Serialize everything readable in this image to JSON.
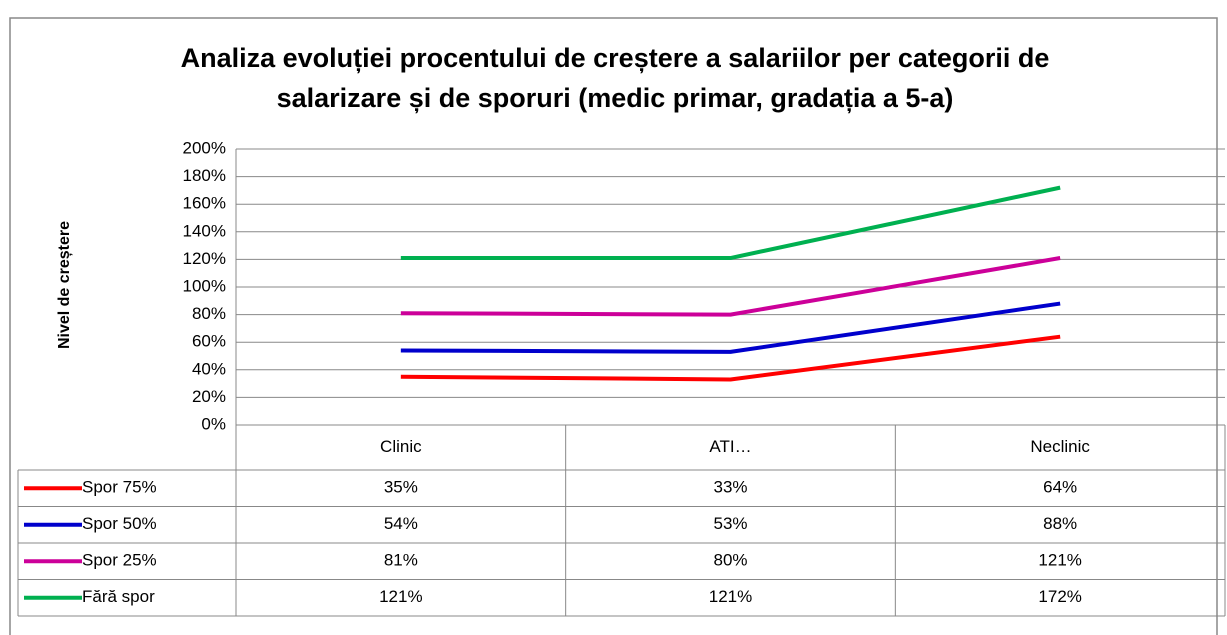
{
  "chart_data": {
    "type": "line",
    "title": "Analiza evoluției procentului de creștere a salariilor per categorii de salarizare  și de sporuri (medic primar, gradația a 5-a)",
    "y_label": "Nivel de creștere",
    "categories": [
      "Clinic",
      "ATI…",
      "Neclinic"
    ],
    "series": [
      {
        "name": "Spor 75%",
        "color": "#ff0000",
        "values": [
          35,
          33,
          64
        ],
        "value_labels": [
          "35%",
          "33%",
          "64%"
        ]
      },
      {
        "name": "Spor 50%",
        "color": "#0000cc",
        "values": [
          54,
          53,
          88
        ],
        "value_labels": [
          "54%",
          "53%",
          "88%"
        ]
      },
      {
        "name": "Spor 25%",
        "color": "#cc0099",
        "values": [
          81,
          80,
          121
        ],
        "value_labels": [
          "81%",
          "80%",
          "121%"
        ]
      },
      {
        "name": "Fără spor",
        "color": "#00b050",
        "values": [
          121,
          121,
          172
        ],
        "value_labels": [
          "121%",
          "121%",
          "172%"
        ]
      }
    ],
    "ylim": [
      0,
      200
    ],
    "yticks": [
      {
        "value": 0,
        "label": "0%"
      },
      {
        "value": 20,
        "label": "20%"
      },
      {
        "value": 40,
        "label": "40%"
      },
      {
        "value": 60,
        "label": "60%"
      },
      {
        "value": 80,
        "label": "80%"
      },
      {
        "value": 100,
        "label": "100%"
      },
      {
        "value": 120,
        "label": "120%"
      },
      {
        "value": 140,
        "label": "140%"
      },
      {
        "value": 160,
        "label": "160%"
      },
      {
        "value": 180,
        "label": "180%"
      },
      {
        "value": 200,
        "label": "200%"
      }
    ],
    "grid": true
  }
}
